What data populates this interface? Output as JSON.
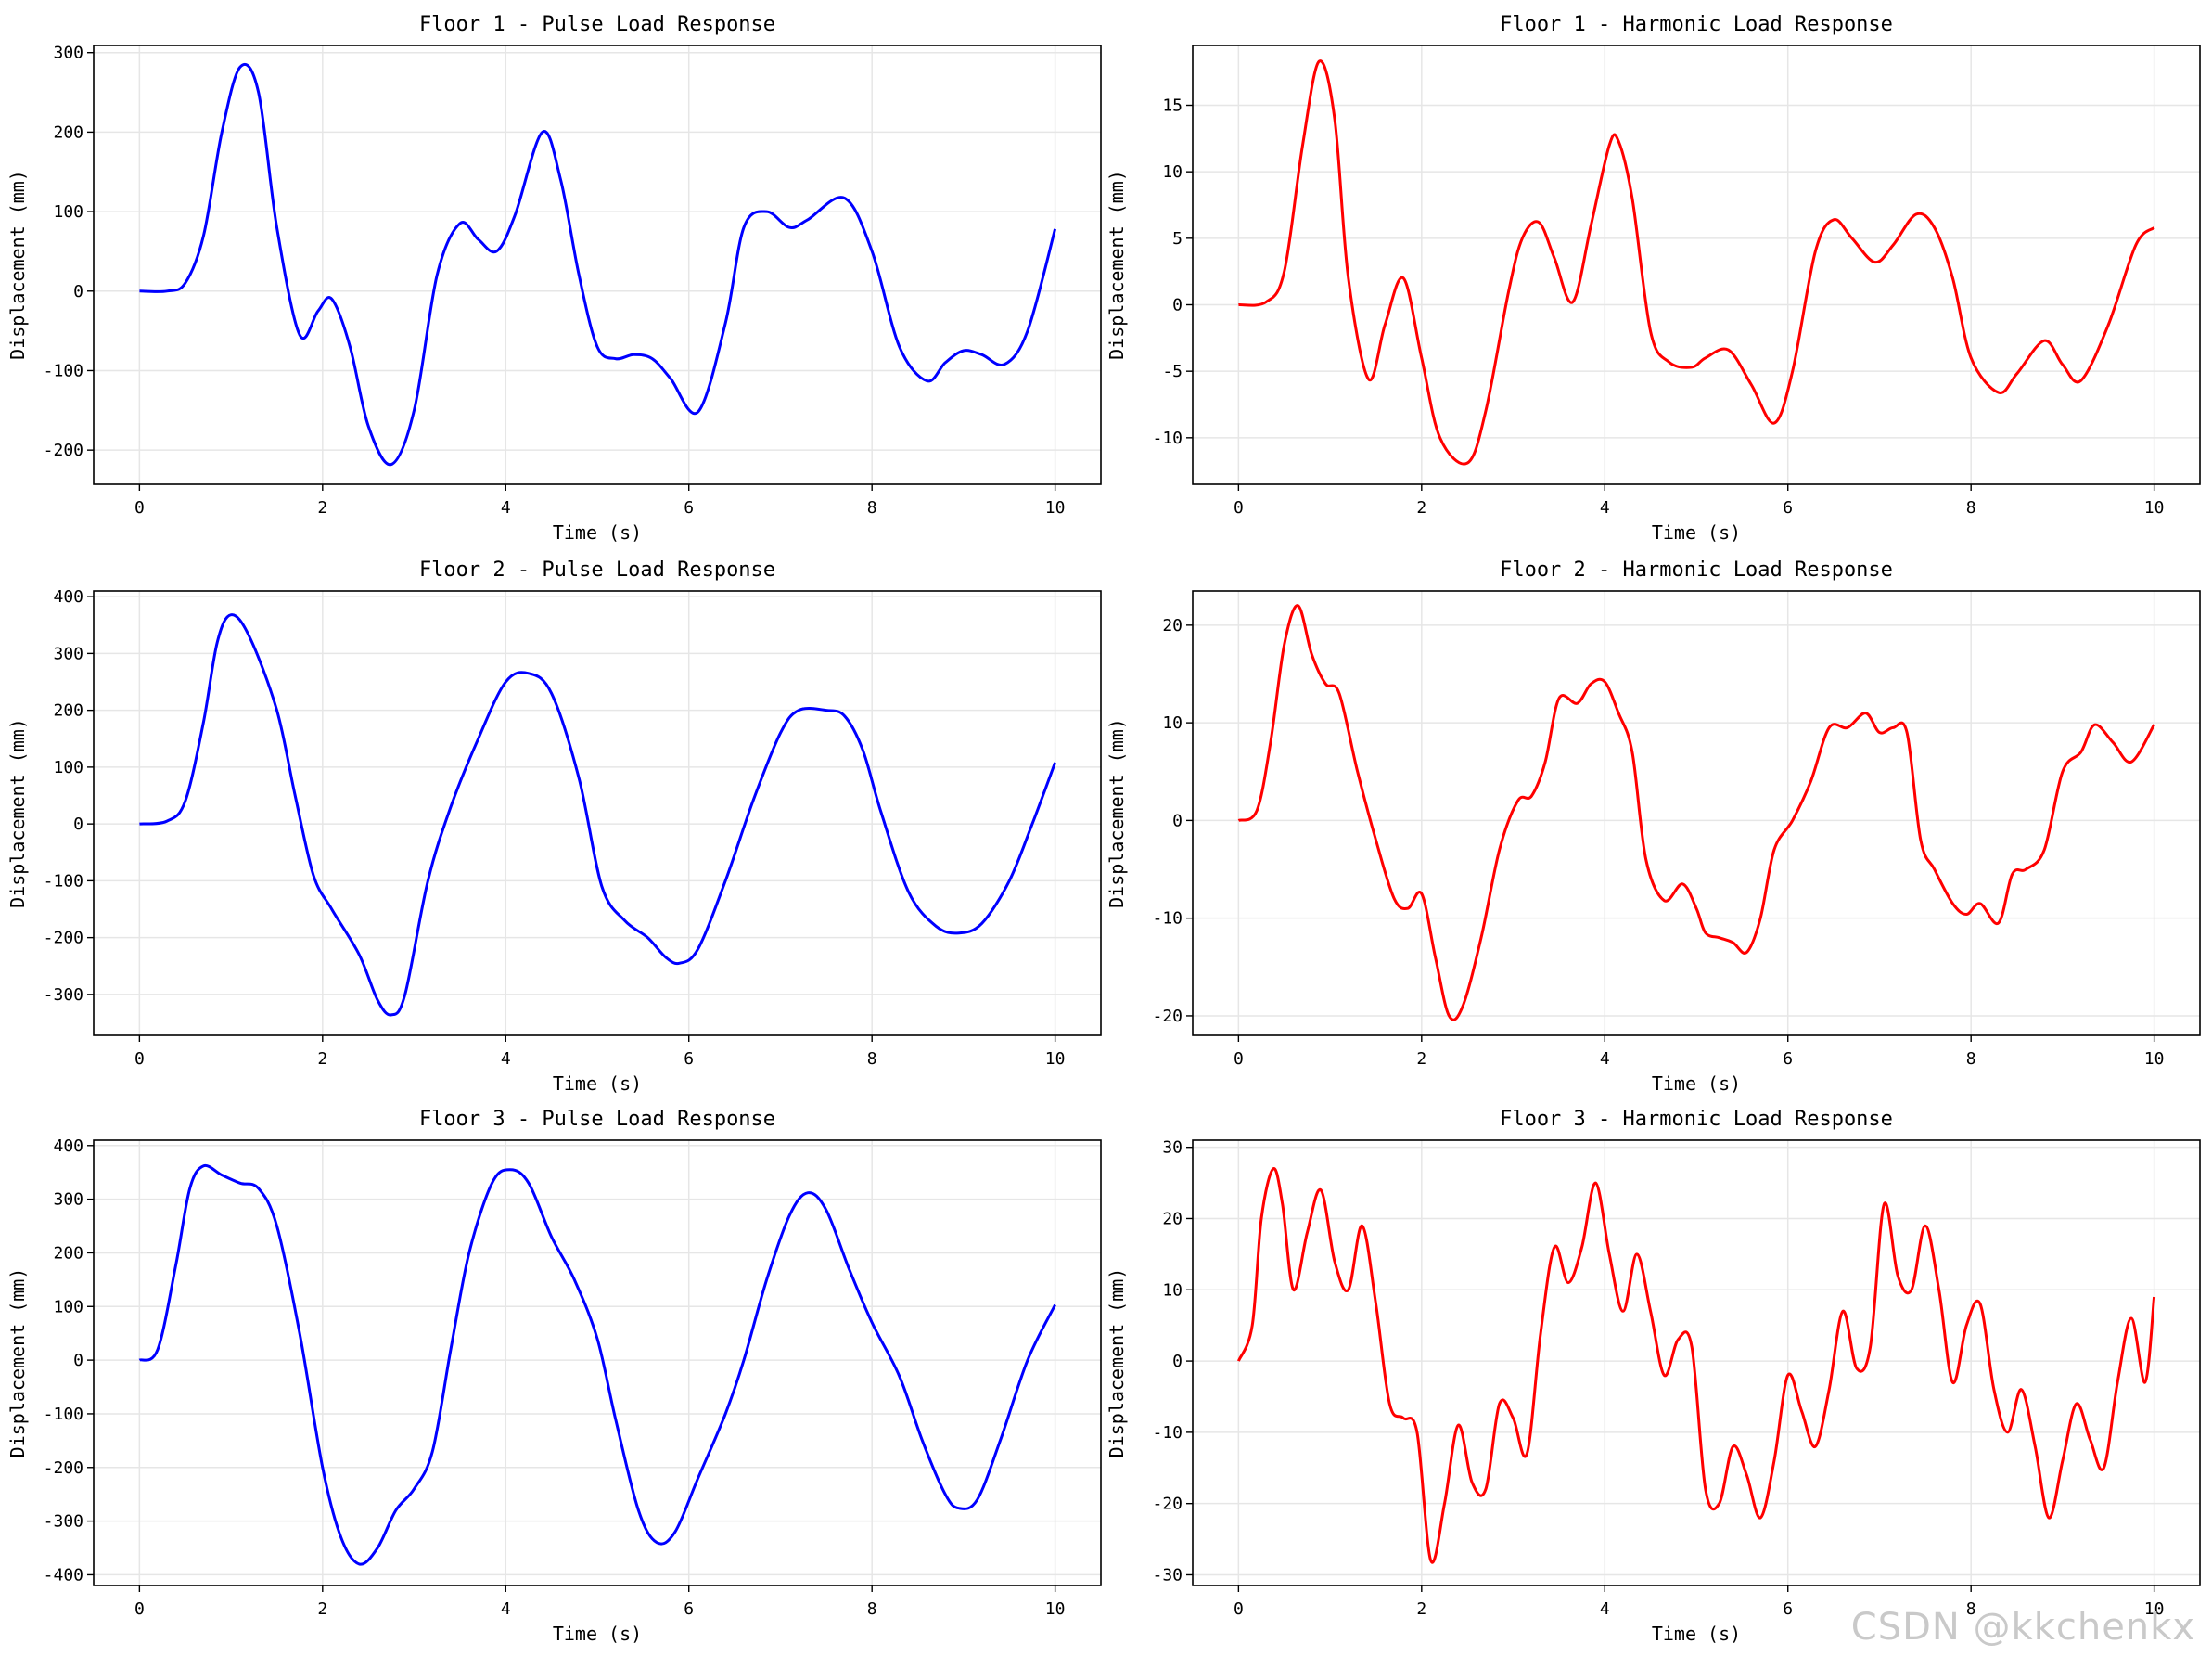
{
  "watermark": "CSDN @kkchenkx",
  "colors": {
    "pulse": "#0000ff",
    "harmonic": "#ff0000",
    "grid": "#e6e6e6",
    "axis": "#000000"
  },
  "chart_data": [
    {
      "type": "line",
      "title": "Floor 1 - Pulse Load Response",
      "xlabel": "Time (s)",
      "ylabel": "Displacement (mm)",
      "xlim": [
        -0.5,
        10.5
      ],
      "ylim": [
        -243,
        309
      ],
      "xticks": [
        0,
        2,
        4,
        6,
        8,
        10
      ],
      "yticks": [
        -200,
        -100,
        0,
        100,
        200,
        300
      ],
      "grid": true,
      "color": "pulse",
      "x": [
        0,
        0.3,
        0.5,
        0.7,
        0.9,
        1.1,
        1.3,
        1.5,
        1.75,
        1.95,
        2.1,
        2.3,
        2.5,
        2.75,
        3.0,
        3.25,
        3.5,
        3.7,
        3.9,
        4.1,
        4.4,
        4.6,
        4.8,
        5.0,
        5.2,
        5.4,
        5.6,
        5.8,
        6.1,
        6.4,
        6.6,
        6.85,
        7.1,
        7.3,
        7.7,
        8.0,
        8.3,
        8.6,
        8.8,
        9.0,
        9.2,
        9.45,
        9.7,
        10.0
      ],
      "y": [
        0,
        0,
        10,
        70,
        200,
        282,
        250,
        80,
        -55,
        -25,
        -10,
        -70,
        -170,
        -218,
        -150,
        20,
        85,
        65,
        50,
        95,
        200,
        140,
        20,
        -70,
        -85,
        -80,
        -85,
        -110,
        -152,
        -40,
        80,
        100,
        80,
        90,
        117,
        50,
        -70,
        -113,
        -90,
        -75,
        -80,
        -92,
        -50,
        78
      ]
    },
    {
      "type": "line",
      "title": "Floor 1 - Harmonic Load Response",
      "xlabel": "Time (s)",
      "ylabel": "Displacement (mm)",
      "xlim": [
        -0.5,
        10.5
      ],
      "ylim": [
        -13.5,
        19.5
      ],
      "xticks": [
        0,
        2,
        4,
        6,
        8,
        10
      ],
      "yticks": [
        -10,
        -5,
        0,
        5,
        10,
        15
      ],
      "grid": true,
      "color": "harmonic",
      "x": [
        0,
        0.3,
        0.5,
        0.7,
        0.88,
        1.05,
        1.2,
        1.42,
        1.6,
        1.8,
        2.0,
        2.2,
        2.5,
        2.7,
        2.95,
        3.1,
        3.28,
        3.45,
        3.65,
        3.85,
        4.05,
        4.15,
        4.3,
        4.5,
        4.7,
        4.95,
        5.1,
        5.35,
        5.6,
        5.85,
        6.05,
        6.3,
        6.5,
        6.7,
        6.95,
        7.15,
        7.4,
        7.6,
        7.8,
        8.0,
        8.3,
        8.5,
        8.8,
        9.0,
        9.2,
        9.5,
        9.8,
        10.0
      ],
      "y": [
        0,
        0.2,
        2.5,
        12,
        18.3,
        14,
        2,
        -5.6,
        -1.5,
        2,
        -4,
        -10,
        -11.9,
        -8,
        1,
        5,
        6.2,
        3.5,
        0.2,
        6,
        12,
        12.3,
        8,
        -2,
        -4.3,
        -4.7,
        -4,
        -3.4,
        -6,
        -8.9,
        -5,
        4,
        6.4,
        5,
        3.2,
        4.5,
        6.8,
        5.8,
        2,
        -4,
        -6.6,
        -5.2,
        -2.7,
        -4.5,
        -5.7,
        -1.5,
        4.5,
        5.8
      ]
    },
    {
      "type": "line",
      "title": "Floor 2 - Pulse Load Response",
      "xlabel": "Time (s)",
      "ylabel": "Displacement (mm)",
      "xlim": [
        -0.5,
        10.5
      ],
      "ylim": [
        -372,
        410
      ],
      "xticks": [
        0,
        2,
        4,
        6,
        8,
        10
      ],
      "yticks": [
        -300,
        -200,
        -100,
        0,
        100,
        200,
        300,
        400
      ],
      "grid": true,
      "color": "pulse",
      "x": [
        0,
        0.3,
        0.5,
        0.7,
        0.85,
        1.0,
        1.2,
        1.5,
        1.7,
        1.9,
        2.1,
        2.4,
        2.6,
        2.75,
        2.9,
        3.15,
        3.4,
        3.7,
        4.0,
        4.25,
        4.5,
        4.8,
        5.05,
        5.3,
        5.55,
        5.75,
        5.9,
        6.1,
        6.4,
        6.7,
        7.0,
        7.2,
        7.5,
        7.7,
        7.9,
        8.1,
        8.4,
        8.7,
        8.95,
        9.2,
        9.5,
        9.75,
        10.0
      ],
      "y": [
        0,
        5,
        40,
        180,
        320,
        368,
        330,
        200,
        50,
        -90,
        -150,
        -230,
        -310,
        -336,
        -300,
        -100,
        30,
        150,
        250,
        265,
        230,
        80,
        -110,
        -170,
        -200,
        -235,
        -245,
        -220,
        -100,
        40,
        160,
        200,
        200,
        190,
        130,
        20,
        -120,
        -180,
        -192,
        -175,
        -100,
        0,
        108
      ]
    },
    {
      "type": "line",
      "title": "Floor 2 - Harmonic Load Response",
      "xlabel": "Time (s)",
      "ylabel": "Displacement (mm)",
      "xlim": [
        -0.5,
        10.5
      ],
      "ylim": [
        -22,
        23.5
      ],
      "xticks": [
        0,
        2,
        4,
        6,
        8,
        10
      ],
      "yticks": [
        -20,
        -10,
        0,
        10,
        20
      ],
      "grid": true,
      "color": "harmonic",
      "x": [
        0,
        0.2,
        0.35,
        0.5,
        0.65,
        0.8,
        0.95,
        1.1,
        1.3,
        1.5,
        1.7,
        1.85,
        2.0,
        2.15,
        2.3,
        2.45,
        2.65,
        2.85,
        3.05,
        3.2,
        3.35,
        3.5,
        3.7,
        3.85,
        4.0,
        4.15,
        4.3,
        4.45,
        4.65,
        4.85,
        5.0,
        5.1,
        5.25,
        5.4,
        5.55,
        5.7,
        5.85,
        6.05,
        6.25,
        6.45,
        6.65,
        6.85,
        7.0,
        7.15,
        7.3,
        7.45,
        7.6,
        7.8,
        7.95,
        8.1,
        8.3,
        8.45,
        8.6,
        8.8,
        9.0,
        9.2,
        9.35,
        9.55,
        9.75,
        10.0
      ],
      "y": [
        0,
        1,
        8,
        18,
        22,
        17,
        14,
        13,
        5,
        -2,
        -8,
        -9,
        -7.5,
        -14,
        -20,
        -19,
        -12,
        -3,
        2,
        2.5,
        6,
        12.5,
        12,
        14,
        14.2,
        11,
        7,
        -4,
        -8.2,
        -6.5,
        -9,
        -11.5,
        -12,
        -12.5,
        -13.5,
        -10,
        -3,
        0,
        4,
        9.5,
        9.5,
        11,
        9,
        9.5,
        9,
        -2,
        -5,
        -8.5,
        -9.6,
        -8.5,
        -10.5,
        -5.5,
        -5,
        -3,
        5,
        7,
        9.8,
        8,
        6,
        9.8
      ]
    },
    {
      "type": "line",
      "title": "Floor 3 - Pulse Load Response",
      "xlabel": "Time (s)",
      "ylabel": "Displacement (mm)",
      "xlim": [
        -0.5,
        10.5
      ],
      "ylim": [
        -420,
        410
      ],
      "xticks": [
        0,
        2,
        4,
        6,
        8,
        10
      ],
      "yticks": [
        -400,
        -300,
        -200,
        -100,
        0,
        100,
        200,
        300,
        400
      ],
      "grid": true,
      "color": "pulse",
      "x": [
        0,
        0.2,
        0.4,
        0.55,
        0.7,
        0.9,
        1.1,
        1.3,
        1.5,
        1.75,
        2.0,
        2.2,
        2.4,
        2.6,
        2.8,
        3.0,
        3.2,
        3.4,
        3.6,
        3.85,
        4.05,
        4.25,
        4.5,
        4.75,
        5.0,
        5.2,
        5.45,
        5.65,
        5.85,
        6.1,
        6.4,
        6.6,
        6.85,
        7.1,
        7.3,
        7.5,
        7.75,
        8.0,
        8.3,
        8.55,
        8.8,
        8.95,
        9.15,
        9.4,
        9.7,
        10.0
      ],
      "y": [
        0,
        20,
        180,
        320,
        362,
        345,
        330,
        320,
        250,
        50,
        -200,
        -330,
        -380,
        -350,
        -280,
        -240,
        -170,
        20,
        200,
        330,
        355,
        330,
        230,
        150,
        40,
        -110,
        -280,
        -340,
        -320,
        -220,
        -100,
        0,
        150,
        270,
        312,
        280,
        170,
        70,
        -30,
        -150,
        -250,
        -276,
        -260,
        -150,
        0,
        103
      ]
    },
    {
      "type": "line",
      "title": "Floor 3 - Harmonic Load Response",
      "xlabel": "Time (s)",
      "ylabel": "Displacement (mm)",
      "xlim": [
        -0.5,
        10.5
      ],
      "ylim": [
        -31.5,
        31
      ],
      "xticks": [
        0,
        2,
        4,
        6,
        8,
        10
      ],
      "yticks": [
        -30,
        -20,
        -10,
        0,
        10,
        20,
        30
      ],
      "grid": true,
      "color": "harmonic",
      "x": [
        0,
        0.15,
        0.25,
        0.38,
        0.48,
        0.6,
        0.75,
        0.9,
        1.05,
        1.2,
        1.35,
        1.5,
        1.65,
        1.8,
        1.95,
        2.1,
        2.25,
        2.4,
        2.55,
        2.7,
        2.85,
        3.0,
        3.15,
        3.3,
        3.45,
        3.6,
        3.75,
        3.9,
        4.05,
        4.2,
        4.35,
        4.5,
        4.65,
        4.8,
        4.95,
        5.1,
        5.25,
        5.4,
        5.55,
        5.7,
        5.85,
        6.0,
        6.15,
        6.3,
        6.45,
        6.6,
        6.75,
        6.9,
        7.05,
        7.2,
        7.35,
        7.5,
        7.65,
        7.8,
        7.95,
        8.1,
        8.25,
        8.4,
        8.55,
        8.7,
        8.85,
        9.0,
        9.15,
        9.3,
        9.45,
        9.6,
        9.75,
        9.9,
        10.0
      ],
      "y": [
        0,
        5,
        20,
        27,
        22,
        10,
        18,
        24,
        14,
        10,
        19,
        8,
        -6,
        -8,
        -10,
        -28,
        -20,
        -9,
        -17,
        -18,
        -6,
        -8,
        -13,
        4,
        16,
        11,
        16,
        25,
        15,
        7,
        15,
        7,
        -2,
        3,
        2,
        -18,
        -20,
        -12,
        -16,
        -22,
        -14,
        -2,
        -7,
        -12,
        -4,
        7,
        -1,
        2,
        22,
        12,
        10,
        19,
        10,
        -3,
        5,
        8,
        -4,
        -10,
        -4,
        -12,
        -22,
        -14,
        -6,
        -11,
        -15,
        -3,
        6,
        -3,
        9
      ]
    }
  ]
}
